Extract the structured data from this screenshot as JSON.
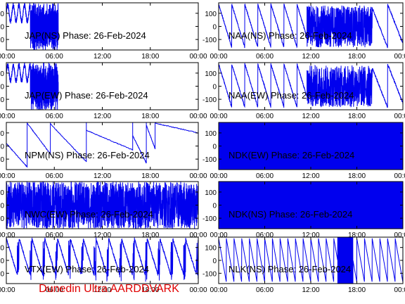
{
  "footer": "Dunedin Ultra AARDDVARK",
  "colors": {
    "trace": "#0000ee",
    "axes": "#000000",
    "footer": "#e00000"
  },
  "chart_data": [
    {
      "type": "line",
      "title": "JAP(NS) Phase: 26-Feb-2024",
      "x_ticks": [
        "00:00",
        "06:00",
        "12:00",
        "18:00",
        "00:00"
      ],
      "y_ticks": [
        100,
        0,
        -100
      ],
      "xlim": [
        0,
        24
      ],
      "ylim": [
        -180,
        180
      ],
      "pattern": "dense_from",
      "dense_start": 6.5
    },
    {
      "type": "line",
      "title": "NAA(NS) Phase: 26-Feb-2024",
      "x_ticks": [
        "00:00",
        "06:00",
        "12:00",
        "18:00",
        "00:00"
      ],
      "y_ticks": [
        100,
        0,
        -100
      ],
      "xlim": [
        0,
        24
      ],
      "ylim": [
        -180,
        180
      ],
      "pattern": "sawtooth_then_noise",
      "noisy_span": [
        11.5,
        20
      ]
    },
    {
      "type": "line",
      "title": "JAP(EW) Phase: 26-Feb-2024",
      "x_ticks": [
        "00:00",
        "06:00",
        "12:00",
        "18:00",
        "00:00"
      ],
      "y_ticks": [
        100,
        0,
        -100
      ],
      "xlim": [
        0,
        24
      ],
      "ylim": [
        -180,
        180
      ],
      "pattern": "dense_from",
      "dense_start": 6.5
    },
    {
      "type": "line",
      "title": "NAA(EW) Phase: 26-Feb-2024",
      "x_ticks": [
        "00:00",
        "06:00",
        "12:00",
        "18:00",
        "00:00"
      ],
      "y_ticks": [
        100,
        0,
        -100
      ],
      "xlim": [
        0,
        24
      ],
      "ylim": [
        -180,
        180
      ],
      "pattern": "sawtooth_then_noise",
      "noisy_span": [
        11.5,
        20
      ]
    },
    {
      "type": "line",
      "title": "NPM(NS) Phase: 26-Feb-2024",
      "x_ticks": [
        "00:00",
        "06:00",
        "12:00",
        "18:00",
        "00:00"
      ],
      "y_ticks": [
        100,
        0,
        -100
      ],
      "xlim": [
        0,
        24
      ],
      "ylim": [
        -180,
        180
      ],
      "pattern": "slow_drift"
    },
    {
      "type": "line",
      "title": "NDK(EW) Phase: 26-Feb-2024",
      "x_ticks": [
        "00:00",
        "06:00",
        "12:00",
        "18:00",
        "00:00"
      ],
      "y_ticks": [
        100,
        0,
        -100
      ],
      "xlim": [
        0,
        24
      ],
      "ylim": [
        -180,
        180
      ],
      "pattern": "solid"
    },
    {
      "type": "line",
      "title": "NWC(EW) Phase: 26-Feb-2024",
      "x_ticks": [
        "00:00",
        "06:00",
        "12:00",
        "18:00",
        "00:00"
      ],
      "y_ticks": [
        100,
        0,
        -100
      ],
      "xlim": [
        0,
        24
      ],
      "ylim": [
        -180,
        180
      ],
      "pattern": "noise_bars"
    },
    {
      "type": "line",
      "title": "NDK(NS) Phase: 26-Feb-2024",
      "x_ticks": [
        "00:00",
        "06:00",
        "12:00",
        "18:00",
        "00:00"
      ],
      "y_ticks": [
        100,
        0,
        -100
      ],
      "xlim": [
        0,
        24
      ],
      "ylim": [
        -180,
        180
      ],
      "pattern": "solid"
    },
    {
      "type": "line",
      "title": "VTX(EW) Phase: 26-Feb-2024",
      "x_ticks": [
        "00:00",
        "06:00",
        "12:00",
        "18:00",
        "00:00"
      ],
      "y_ticks": [
        100,
        0,
        -100
      ],
      "xlim": [
        0,
        24
      ],
      "ylim": [
        -180,
        180
      ],
      "pattern": "fast_sawtooth"
    },
    {
      "type": "line",
      "title": "NLK(NS) Phase: 26-Feb-2024",
      "x_ticks": [
        "00:00",
        "06:00",
        "12:00",
        "18:00",
        "00:00"
      ],
      "y_ticks": [
        100,
        0,
        -100
      ],
      "xlim": [
        0,
        24
      ],
      "ylim": [
        -180,
        180
      ],
      "pattern": "regular_sawtooth",
      "block_span": [
        15.5,
        17.5
      ]
    }
  ]
}
